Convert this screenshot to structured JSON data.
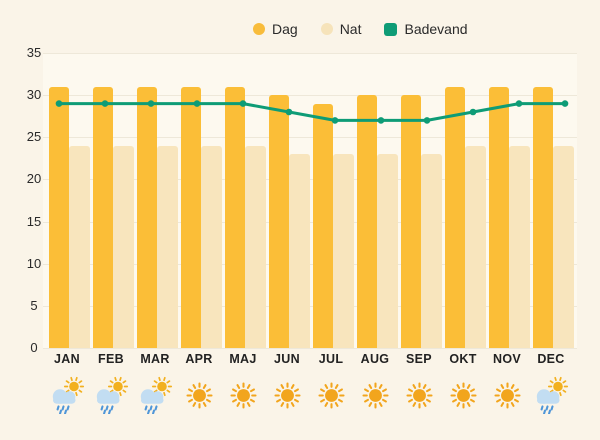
{
  "legend": {
    "items": [
      {
        "label": "Dag",
        "swatch": "circle",
        "color": "#F8BC3B"
      },
      {
        "label": "Nat",
        "swatch": "circle",
        "color": "#F6E3BA"
      },
      {
        "label": "Badevand",
        "swatch": "square",
        "color": "#0E9C76"
      }
    ]
  },
  "chart_data": {
    "type": "bar",
    "categories": [
      "JAN",
      "FEB",
      "MAR",
      "APR",
      "MAJ",
      "JUN",
      "JUL",
      "AUG",
      "SEP",
      "OKT",
      "NOV",
      "DEC"
    ],
    "series": [
      {
        "name": "Dag",
        "type": "bar",
        "color": "#FBBE37",
        "values": [
          31,
          31,
          31,
          31,
          31,
          30,
          29,
          30,
          30,
          31,
          31,
          31
        ]
      },
      {
        "name": "Nat",
        "type": "bar",
        "color": "#F8E5BD",
        "values": [
          24,
          24,
          24,
          24,
          24,
          23,
          23,
          23,
          23,
          24,
          24,
          24
        ]
      },
      {
        "name": "Badevand",
        "type": "line",
        "color": "#0E9C76",
        "values": [
          29,
          29,
          29,
          29,
          29,
          28,
          27,
          27,
          27,
          28,
          29,
          29
        ]
      }
    ],
    "y_ticks": [
      35,
      30,
      25,
      20,
      15,
      10,
      5,
      0
    ],
    "ylim": [
      0,
      35
    ],
    "grid": true,
    "legend_position": "top",
    "xlabel": "",
    "ylabel": ""
  },
  "weather_icons": [
    "rain-sun",
    "rain-sun",
    "rain-sun",
    "sun",
    "sun",
    "sun",
    "sun",
    "sun",
    "sun",
    "sun",
    "sun",
    "rain-sun"
  ],
  "colors": {
    "background": "#FAF4E8",
    "plot_background": "#FDF9EF",
    "grid": "#EEE8D9",
    "text": "#2A2A2A",
    "day_bar": "#FBBE37",
    "night_bar": "#F8E5BD",
    "line": "#0E9C76",
    "sun": "#F2A51D",
    "sun_small": "#F2B01F",
    "cloud": "#C2DDF2",
    "rain": "#4F96D8"
  }
}
